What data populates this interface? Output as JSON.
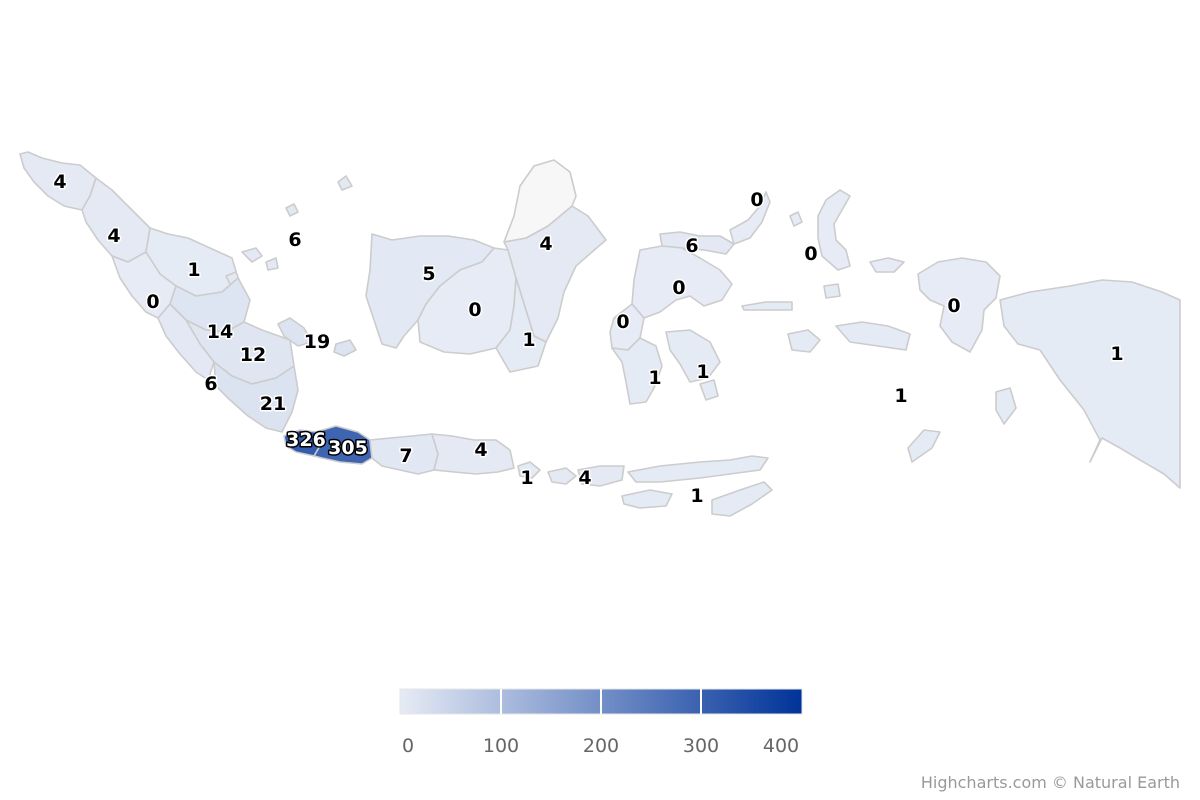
{
  "map": {
    "color_scale": {
      "min": 0,
      "max": 420,
      "min_color": "#e6ebf5",
      "max_color": "#003399",
      "no_data_color": "#f7f7f7"
    },
    "legend": {
      "ticks": [
        "0",
        "100",
        "200",
        "300",
        "400"
      ]
    },
    "credits": "Highcharts.com © Natural Earth",
    "regions": [
      {
        "name": "aceh",
        "value": 4
      },
      {
        "name": "sumatera-utara",
        "value": 4
      },
      {
        "name": "riau",
        "value": 1
      },
      {
        "name": "sumatera-barat",
        "value": 0
      },
      {
        "name": "kepulauan-riau",
        "value": 6
      },
      {
        "name": "jambi",
        "value": 14
      },
      {
        "name": "sumatera-selatan",
        "value": 12
      },
      {
        "name": "bangka-belitung",
        "value": 19
      },
      {
        "name": "bengkulu",
        "value": 6
      },
      {
        "name": "lampung",
        "value": 21
      },
      {
        "name": "banten",
        "value": 326
      },
      {
        "name": "jawa-barat",
        "value": 305
      },
      {
        "name": "jawa-tengah",
        "value": 7
      },
      {
        "name": "jawa-timur",
        "value": 4
      },
      {
        "name": "bali",
        "value": 1
      },
      {
        "name": "nusa-tenggara-barat",
        "value": 4
      },
      {
        "name": "nusa-tenggara-timur",
        "value": 1
      },
      {
        "name": "kalimantan-barat",
        "value": 5
      },
      {
        "name": "kalimantan-tengah",
        "value": 0
      },
      {
        "name": "kalimantan-timur",
        "value": 4
      },
      {
        "name": "kalimantan-selatan",
        "value": 1
      },
      {
        "name": "kalimantan-utara",
        "value": null
      },
      {
        "name": "sulawesi-utara",
        "value": 0
      },
      {
        "name": "gorontalo",
        "value": 6
      },
      {
        "name": "sulawesi-tengah",
        "value": 0
      },
      {
        "name": "sulawesi-barat",
        "value": 0
      },
      {
        "name": "sulawesi-selatan",
        "value": 1
      },
      {
        "name": "sulawesi-tenggara",
        "value": 1
      },
      {
        "name": "maluku-utara",
        "value": 0
      },
      {
        "name": "maluku",
        "value": 1
      },
      {
        "name": "papua-barat",
        "value": 0
      },
      {
        "name": "papua",
        "value": 1
      }
    ]
  }
}
